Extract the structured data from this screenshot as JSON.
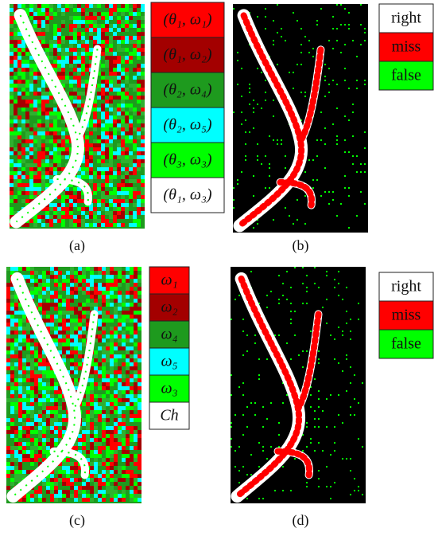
{
  "panels": [
    {
      "label": "(a)",
      "legend": [
        {
          "text": "(θ₁, ω₁)",
          "color": "#ff0000"
        },
        {
          "text": "(θ₁, ω₂)",
          "color": "#a30000"
        },
        {
          "text": "(θ₂, ω₄)",
          "color": "#1e9a1e"
        },
        {
          "text": "(θ₂, ω₅)",
          "color": "#00ffff"
        },
        {
          "text": "(θ₃, ω₃)",
          "color": "#00ff00"
        },
        {
          "text": "(θ₁, ω₃)",
          "color": "#ffffff"
        }
      ]
    },
    {
      "label": "(b)",
      "legend": [
        {
          "text": "right",
          "color": "#ffffff"
        },
        {
          "text": "miss",
          "color": "#ff0000"
        },
        {
          "text": "false",
          "color": "#00ff00"
        }
      ]
    },
    {
      "label": "(c)",
      "legend": [
        {
          "text": "ω₁",
          "color": "#ff0000"
        },
        {
          "text": "ω₂",
          "color": "#a30000"
        },
        {
          "text": "ω₄",
          "color": "#1e9a1e"
        },
        {
          "text": "ω₅",
          "color": "#00ffff"
        },
        {
          "text": "ω₃",
          "color": "#00ff00"
        },
        {
          "text": "Ch",
          "color": "#ffffff"
        }
      ]
    },
    {
      "label": "(d)",
      "legend": [
        {
          "text": "right",
          "color": "#ffffff"
        },
        {
          "text": "miss",
          "color": "#ff0000"
        },
        {
          "text": "false",
          "color": "#00ff00"
        }
      ]
    }
  ]
}
